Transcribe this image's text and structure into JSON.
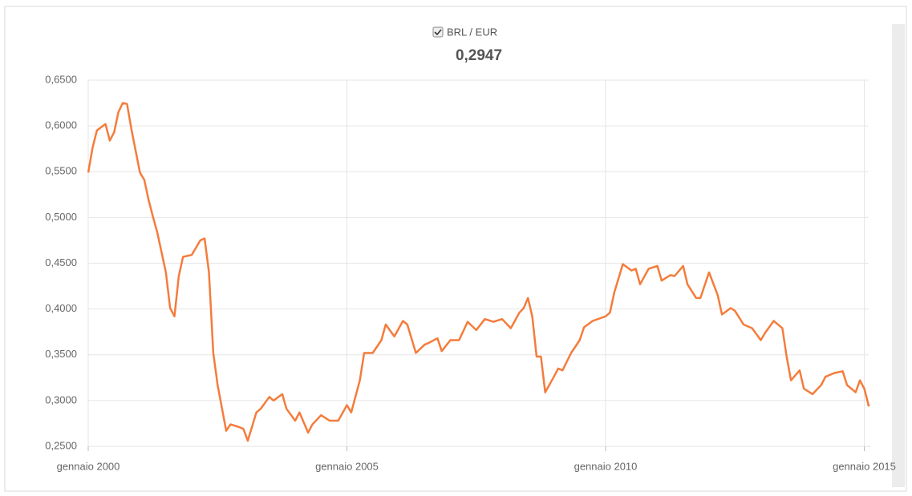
{
  "chart_data": {
    "type": "line",
    "current": {
      "value": 0.2947,
      "label": "0,2947"
    },
    "x": [
      "2000-01",
      "2000-02",
      "2000-03",
      "2000-05",
      "2000-06",
      "2000-07",
      "2000-08",
      "2000-09",
      "2000-10",
      "2000-11",
      "2001-01",
      "2001-02",
      "2001-03",
      "2001-04",
      "2001-05",
      "2001-07",
      "2001-08",
      "2001-09",
      "2001-10",
      "2001-11",
      "2002-01",
      "2002-03",
      "2002-04",
      "2002-05",
      "2002-06",
      "2002-07",
      "2002-09",
      "2002-10",
      "2002-12",
      "2003-01",
      "2003-02",
      "2003-04",
      "2003-05",
      "2003-07",
      "2003-08",
      "2003-10",
      "2003-11",
      "2004-01",
      "2004-02",
      "2004-04",
      "2004-05",
      "2004-07",
      "2004-09",
      "2004-11",
      "2005-01",
      "2005-02",
      "2005-04",
      "2005-05",
      "2005-07",
      "2005-09",
      "2005-10",
      "2005-12",
      "2006-02",
      "2006-03",
      "2006-05",
      "2006-07",
      "2006-08",
      "2006-10",
      "2006-11",
      "2007-01",
      "2007-03",
      "2007-05",
      "2007-07",
      "2007-09",
      "2007-11",
      "2008-01",
      "2008-03",
      "2008-05",
      "2008-06",
      "2008-07",
      "2008-08",
      "2008-09",
      "2008-10",
      "2008-11",
      "2009-01",
      "2009-02",
      "2009-03",
      "2009-05",
      "2009-07",
      "2009-08",
      "2009-10",
      "2010-01",
      "2010-02",
      "2010-03",
      "2010-05",
      "2010-07",
      "2010-08",
      "2010-09",
      "2010-11",
      "2011-01",
      "2011-02",
      "2011-04",
      "2011-05",
      "2011-07",
      "2011-08",
      "2011-10",
      "2011-11",
      "2012-01",
      "2012-03",
      "2012-04",
      "2012-06",
      "2012-07",
      "2012-09",
      "2012-11",
      "2013-01",
      "2013-02",
      "2013-04",
      "2013-06",
      "2013-07",
      "2013-08",
      "2013-10",
      "2013-11",
      "2014-01",
      "2014-03",
      "2014-04",
      "2014-06",
      "2014-08",
      "2014-09",
      "2014-11",
      "2014-12",
      "2015-01",
      "2015-02"
    ],
    "series": [
      {
        "name": "BRL / EUR",
        "color": "#f47c3c",
        "values": [
          0.549,
          0.576,
          0.595,
          0.602,
          0.584,
          0.593,
          0.615,
          0.625,
          0.624,
          0.597,
          0.549,
          0.541,
          0.519,
          0.501,
          0.484,
          0.44,
          0.401,
          0.392,
          0.436,
          0.457,
          0.459,
          0.475,
          0.477,
          0.44,
          0.352,
          0.317,
          0.267,
          0.274,
          0.271,
          0.269,
          0.256,
          0.287,
          0.291,
          0.304,
          0.3,
          0.307,
          0.291,
          0.278,
          0.287,
          0.265,
          0.274,
          0.284,
          0.278,
          0.278,
          0.295,
          0.287,
          0.322,
          0.352,
          0.352,
          0.366,
          0.383,
          0.37,
          0.387,
          0.383,
          0.352,
          0.361,
          0.363,
          0.368,
          0.354,
          0.366,
          0.366,
          0.386,
          0.377,
          0.389,
          0.386,
          0.389,
          0.379,
          0.396,
          0.401,
          0.412,
          0.392,
          0.348,
          0.348,
          0.309,
          0.326,
          0.335,
          0.333,
          0.352,
          0.366,
          0.38,
          0.387,
          0.392,
          0.396,
          0.418,
          0.449,
          0.442,
          0.444,
          0.427,
          0.444,
          0.447,
          0.431,
          0.437,
          0.436,
          0.447,
          0.427,
          0.412,
          0.412,
          0.44,
          0.415,
          0.394,
          0.401,
          0.398,
          0.383,
          0.379,
          0.366,
          0.374,
          0.387,
          0.379,
          0.348,
          0.322,
          0.333,
          0.313,
          0.307,
          0.317,
          0.326,
          0.33,
          0.332,
          0.317,
          0.309,
          0.322,
          0.313,
          0.2947
        ]
      }
    ],
    "xlim": [
      "2000-01",
      "2015-02"
    ],
    "xticks": [
      {
        "value": "2000-01",
        "label": "gennaio 2000"
      },
      {
        "value": "2005-01",
        "label": "gennaio 2005"
      },
      {
        "value": "2010-01",
        "label": "gennaio 2010"
      },
      {
        "value": "2015-01",
        "label": "gennaio 2015"
      }
    ],
    "ylim": [
      0.25,
      0.65
    ],
    "yticks": [
      {
        "value": 0.25,
        "label": "0,2500"
      },
      {
        "value": 0.3,
        "label": "0,3000"
      },
      {
        "value": 0.35,
        "label": "0,3500"
      },
      {
        "value": 0.4,
        "label": "0,4000"
      },
      {
        "value": 0.45,
        "label": "0,4500"
      },
      {
        "value": 0.5,
        "label": "0,5000"
      },
      {
        "value": 0.55,
        "label": "0,5500"
      },
      {
        "value": 0.6,
        "label": "0,6000"
      },
      {
        "value": 0.65,
        "label": "0,6500"
      }
    ],
    "grid": true
  }
}
